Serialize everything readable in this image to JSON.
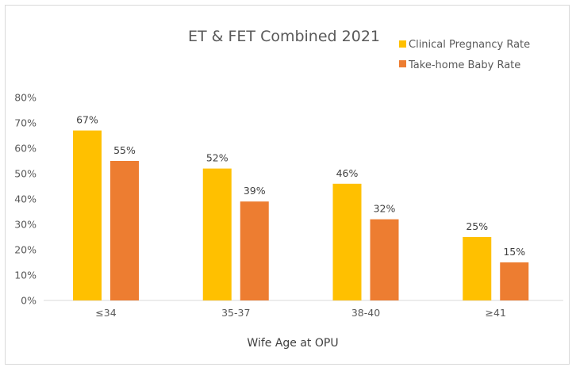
{
  "chart_data": {
    "type": "bar",
    "title": "ET & FET Combined 2021",
    "xlabel": "Wife Age at OPU",
    "ylabel": "",
    "categories": [
      "≤34",
      "35-37",
      "38-40",
      "≥41"
    ],
    "series": [
      {
        "name": "Clinical Pregnancy Rate",
        "values": [
          67,
          52,
          46,
          25
        ],
        "labels": [
          "67%",
          "52%",
          "46%",
          "25%"
        ],
        "color": "#FFC000"
      },
      {
        "name": "Take-home Baby Rate",
        "values": [
          55,
          39,
          32,
          15
        ],
        "labels": [
          "55%",
          "39%",
          "32%",
          "15%"
        ],
        "color": "#ED7D31"
      }
    ],
    "ylim": [
      0,
      80
    ],
    "yticks": [
      "0%",
      "10%",
      "20%",
      "30%",
      "40%",
      "50%",
      "60%",
      "70%",
      "80%"
    ],
    "grid": false,
    "legend": "top-right"
  }
}
